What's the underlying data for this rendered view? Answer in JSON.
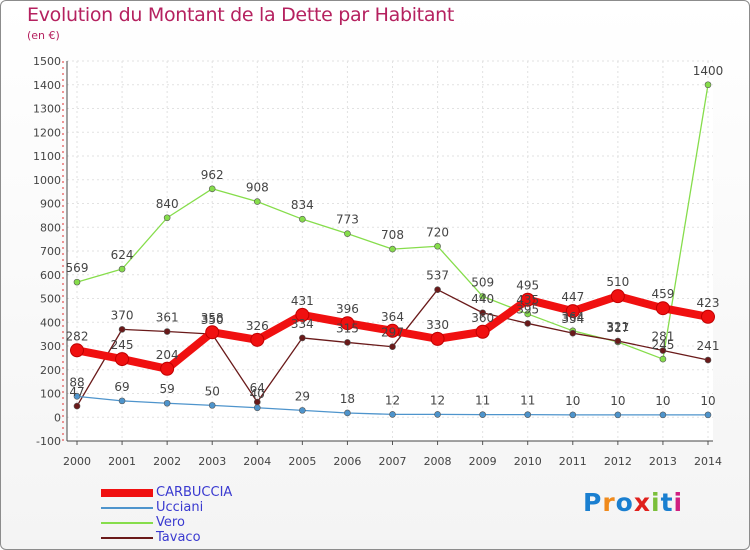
{
  "title": "Evolution du Montant de la Dette par Habitant",
  "subtitle": "(en €)",
  "logo": {
    "text": "Proxiti",
    "colors": [
      "#1a7fd0",
      "#f08a1c",
      "#1a7fd0",
      "#e0201c",
      "#7bbf3a",
      "#1a7fd0",
      "#d02080"
    ]
  },
  "chart_data": {
    "type": "line",
    "title": "Evolution du Montant de la Dette par Habitant",
    "ylabel": "(en €)",
    "xlabel": "",
    "categories": [
      "2000",
      "2001",
      "2002",
      "2003",
      "2004",
      "2005",
      "2006",
      "2007",
      "2008",
      "2009",
      "2010",
      "2011",
      "2012",
      "2013",
      "2014"
    ],
    "ylim": [
      -100,
      1500
    ],
    "yticks": [
      "-100",
      "0",
      "100",
      "200",
      "300",
      "400",
      "500",
      "600",
      "700",
      "800",
      "900",
      "1000",
      "1100",
      "1200",
      "1300",
      "1400",
      "1500"
    ],
    "grid": true,
    "series": [
      {
        "name": "CARBUCCIA",
        "color": "#f01010",
        "values": [
          282,
          245,
          204,
          358,
          326,
          431,
          396,
          364,
          330,
          360,
          495,
          447,
          510,
          459,
          423
        ],
        "labels": [
          "282",
          "245",
          "204",
          "358",
          "326",
          "431",
          "396",
          "364",
          "330",
          "360",
          "495",
          "447",
          "510",
          "459",
          "423"
        ]
      },
      {
        "name": "Ucciani",
        "color": "#4e94cc",
        "values": [
          88,
          69,
          59,
          50,
          40,
          29,
          18,
          12,
          12,
          11,
          11,
          10,
          10,
          10,
          10
        ],
        "labels": [
          "88",
          "69",
          "59",
          "50",
          "40",
          "29",
          "18",
          "12",
          "12",
          "11",
          "11",
          "10",
          "10",
          "10",
          "10"
        ]
      },
      {
        "name": "Vero",
        "color": "#86dd4b",
        "values": [
          569,
          624,
          840,
          962,
          908,
          834,
          773,
          708,
          720,
          509,
          435,
          364,
          317,
          245,
          1400
        ],
        "labels": [
          "569",
          "624",
          "840",
          "962",
          "908",
          "834",
          "773",
          "708",
          "720",
          "509",
          "435",
          "364",
          "317",
          "245",
          "1400"
        ]
      },
      {
        "name": "Tavaco",
        "color": "#6a1a1a",
        "values": [
          47,
          370,
          361,
          350,
          64,
          334,
          315,
          297,
          537,
          440,
          395,
          354,
          321,
          281,
          241
        ],
        "labels": [
          "47",
          "370",
          "361",
          "350",
          "64",
          "334",
          "315",
          "297",
          "537",
          "440",
          "395",
          "354",
          "321",
          "281",
          "241"
        ]
      }
    ],
    "legend": "bottom-left"
  }
}
